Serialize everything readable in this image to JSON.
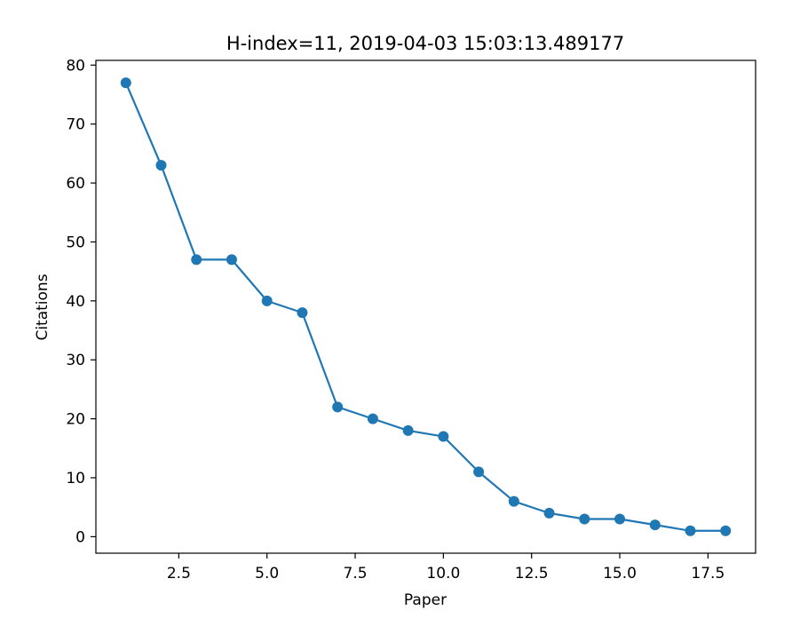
{
  "chart_data": {
    "type": "line",
    "title": "H-index=11, 2019-04-03 15:03:13.489177",
    "xlabel": "Paper",
    "ylabel": "Citations",
    "xlim": [
      0.15,
      18.85
    ],
    "ylim": [
      -2.8,
      80.8
    ],
    "xticks": [
      2.5,
      5.0,
      7.5,
      10.0,
      12.5,
      15.0,
      17.5
    ],
    "xtick_labels": [
      "2.5",
      "5.0",
      "7.5",
      "10.0",
      "12.5",
      "15.0",
      "17.5"
    ],
    "yticks": [
      0,
      10,
      20,
      30,
      40,
      50,
      60,
      70,
      80
    ],
    "ytick_labels": [
      "0",
      "10",
      "20",
      "30",
      "40",
      "50",
      "60",
      "70",
      "80"
    ],
    "grid": false,
    "series": [
      {
        "color": "#1f77b4",
        "marker": "circle",
        "x": [
          1,
          2,
          3,
          4,
          5,
          6,
          7,
          8,
          9,
          10,
          11,
          12,
          13,
          14,
          15,
          16,
          17,
          18
        ],
        "y": [
          77,
          63,
          47,
          47,
          40,
          38,
          22,
          20,
          18,
          17,
          11,
          6,
          4,
          3,
          3,
          2,
          1,
          1
        ]
      }
    ]
  }
}
